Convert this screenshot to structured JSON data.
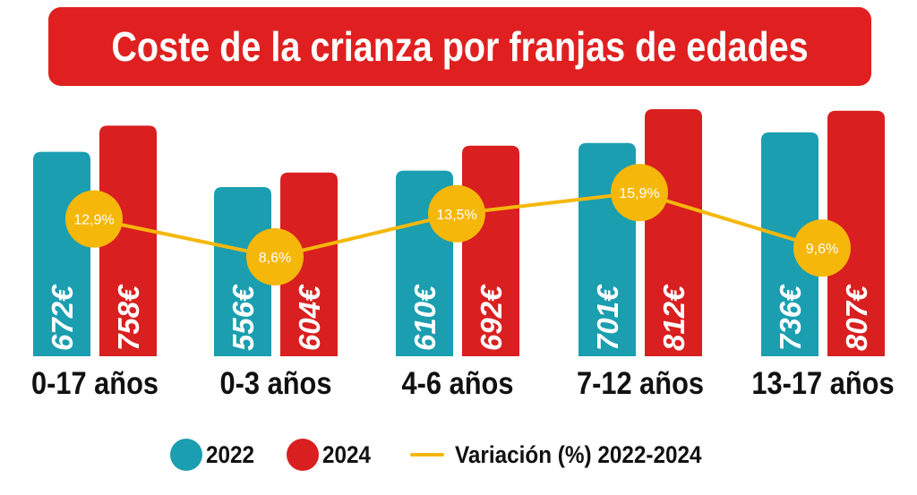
{
  "title": "Coste de la crianza por franjas de edades",
  "colors": {
    "title_bg": "#e02020",
    "series_2022": "#1a9eb0",
    "series_2024": "#d91f1f",
    "variation": "#f5b70a",
    "text": "#111111"
  },
  "chart_data": {
    "type": "bar",
    "title": "Coste de la crianza por franjas de edades",
    "categories": [
      "0-17 años",
      "0-3 años",
      "4-6 años",
      "7-12 años",
      "13-17 años"
    ],
    "series": [
      {
        "name": "2022",
        "values": [
          672,
          556,
          610,
          701,
          736
        ],
        "labels": [
          "672€",
          "556€",
          "610€",
          "701€",
          "736€"
        ]
      },
      {
        "name": "2024",
        "values": [
          758,
          604,
          692,
          812,
          807
        ],
        "labels": [
          "758€",
          "604€",
          "692€",
          "812€",
          "807€"
        ]
      }
    ],
    "line_series": {
      "name": "Variación (%) 2022-2024",
      "values": [
        12.9,
        8.6,
        13.5,
        15.9,
        9.6
      ],
      "labels": [
        "12,9%",
        "8,6%",
        "13,5%",
        "15,9%",
        "9,6%"
      ]
    },
    "ylim": [
      0,
      820
    ],
    "xlabel": "",
    "ylabel": "",
    "grid": false,
    "legend": "bottom"
  },
  "legend": {
    "item_2022": "2022",
    "item_2024": "2024",
    "item_variation": "Variación (%) 2022-2024"
  }
}
